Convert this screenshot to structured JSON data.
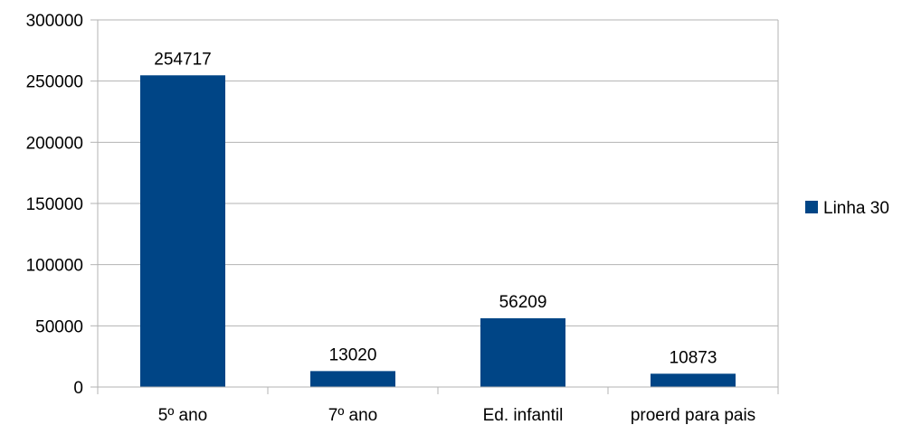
{
  "chart_data": {
    "type": "bar",
    "categories": [
      "5º ano",
      "7º ano",
      "Ed. infantil",
      "proerd para pais"
    ],
    "series": [
      {
        "name": "Linha 30",
        "values": [
          254717,
          13020,
          56209,
          10873
        ],
        "color": "#004586"
      }
    ],
    "y_ticks": [
      "0",
      "50000",
      "100000",
      "150000",
      "200000",
      "250000",
      "300000"
    ],
    "ylim": [
      0,
      300000
    ],
    "grid": true,
    "legend_position": "right",
    "data_labels": [
      "254717",
      "13020",
      "56209",
      "10873"
    ]
  }
}
